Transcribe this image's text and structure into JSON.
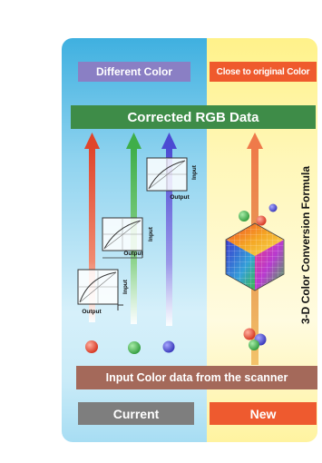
{
  "labels": {
    "different_color": "Different Color",
    "close_to_original": "Close to original Color",
    "corrected_rgb": "Corrected RGB Data",
    "input_color_data": "Input Color data from the scanner",
    "current": "Current",
    "new": "New",
    "formula": "3-D Color Conversion Formula"
  },
  "curve_boxes": [
    {
      "input_label": "Input",
      "output_label": "Output"
    },
    {
      "input_label": "Input",
      "output_label": "Output"
    },
    {
      "input_label": "Input",
      "output_label": "Output"
    }
  ],
  "colors": {
    "red": "#e0452b",
    "green": "#3fae49",
    "blue": "#4b4ad3",
    "different_color_bg": "#8a7fc4",
    "close_color_bg": "#ef5a2d",
    "corrected_bg": "#3e8c48",
    "input_bar_bg": "#a4695a",
    "current_bg": "#7e7e7e",
    "new_bg": "#ee5a2f"
  }
}
